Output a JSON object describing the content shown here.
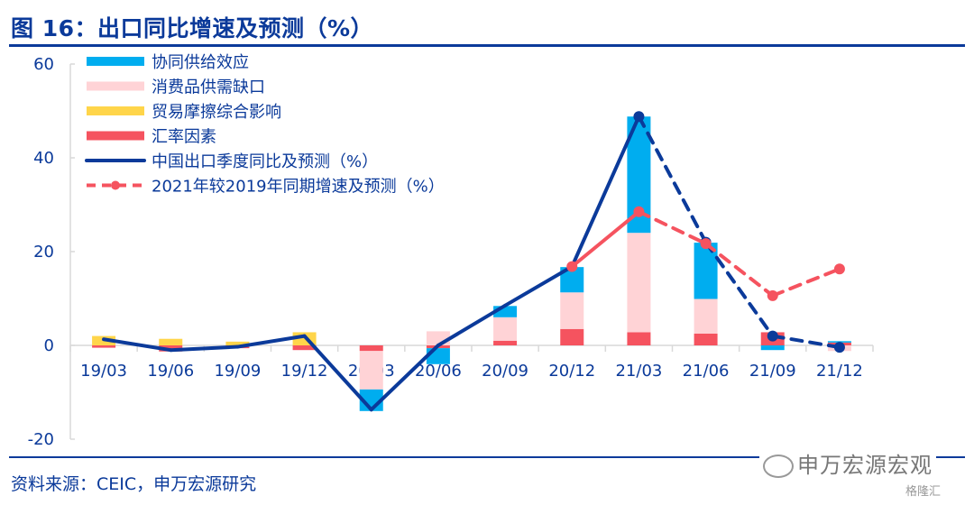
{
  "header": {
    "title": "图 16：出口同比增速及预测（%）"
  },
  "footer": {
    "source": "资料来源：CEIC，申万宏源研究",
    "watermark": "申万宏源宏观",
    "badge": "格隆汇"
  },
  "chart_data": {
    "type": "bar",
    "title": "图 16：出口同比增速及预测（%）",
    "xlabel": "",
    "ylabel": "",
    "ylim": [
      -20,
      60
    ],
    "yticks": [
      -20,
      0,
      20,
      40,
      60
    ],
    "ytick_labels": [
      "-20",
      "0",
      "20",
      "40",
      "60"
    ],
    "categories": [
      "19/03",
      "19/06",
      "19/09",
      "19/12",
      "20/03",
      "20/06",
      "20/09",
      "20/12",
      "21/03",
      "21/06",
      "21/09",
      "21/12"
    ],
    "legend_position": "top-left",
    "stacked_bars": [
      {
        "name": "汇率因素",
        "color": "#f5535f",
        "values": [
          -0.5,
          -1.3,
          -0.6,
          -1.0,
          -1.2,
          -0.6,
          1.0,
          3.5,
          2.8,
          2.5,
          2.8,
          0.6
        ]
      },
      {
        "name": "贸易摩擦综合影响",
        "color": "#ffd54a",
        "values": [
          2.0,
          1.4,
          0.8,
          2.8,
          0,
          0,
          0,
          0,
          0,
          0,
          0,
          0
        ]
      },
      {
        "name": "消费品供需缺口",
        "color": "#ffd3d6",
        "values": [
          0,
          0,
          0,
          0,
          -8.2,
          3.0,
          5.0,
          7.8,
          21.2,
          7.4,
          0,
          -1.2
        ]
      },
      {
        "name": "协同供给效应",
        "color": "#00adef",
        "values": [
          0,
          0,
          0,
          0,
          -4.6,
          -3.4,
          2.4,
          5.4,
          24.8,
          12.0,
          -1.0,
          0.3
        ]
      }
    ],
    "legend_order": [
      "协同供给效应",
      "消费品供需缺口",
      "贸易摩擦综合影响",
      "汇率因素",
      "中国出口季度同比及预测（%）",
      "2021年较2019年同期增速及预测（%）"
    ],
    "lines": [
      {
        "name": "中国出口季度同比及预测（%）",
        "color": "#0b3a9a",
        "values": [
          1.3,
          -1.0,
          -0.3,
          2.0,
          -13.7,
          0.0,
          8.5,
          16.8,
          48.8,
          22.0,
          2.0,
          -0.4
        ],
        "solid_until_index": 8
      },
      {
        "name": "2021年较2019年同期增速及预测（%）",
        "color": "#f5535f",
        "values": [
          null,
          null,
          null,
          null,
          null,
          null,
          null,
          16.8,
          28.5,
          21.7,
          10.6,
          16.3
        ],
        "solid_until_index": 8
      }
    ]
  }
}
